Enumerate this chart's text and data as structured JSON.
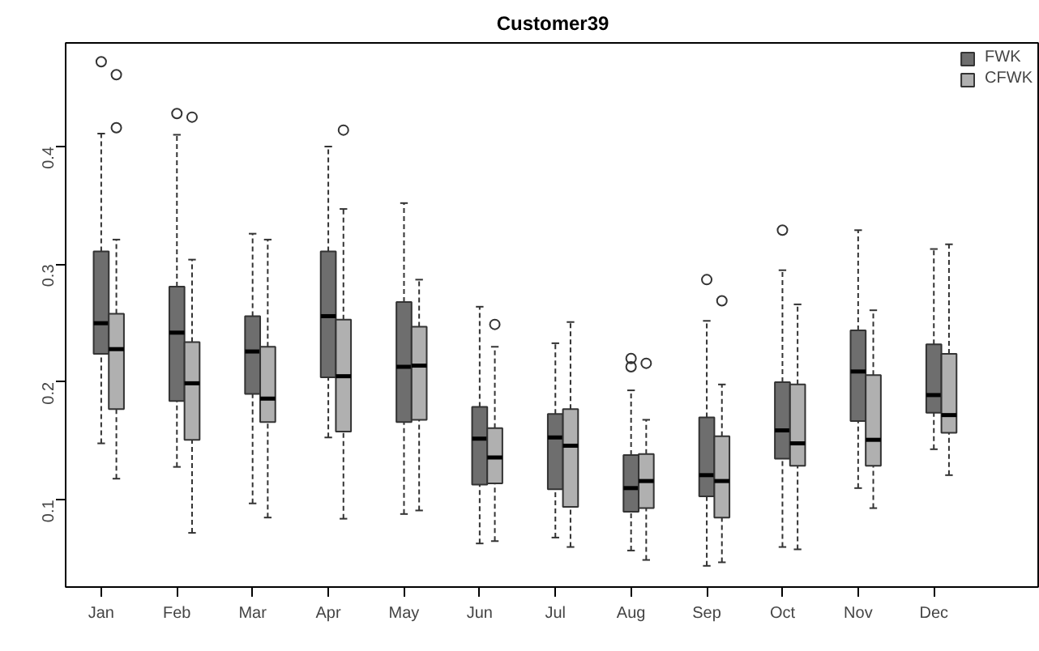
{
  "chart_data": {
    "type": "box",
    "title": "Customer39",
    "categories": [
      "Jan",
      "Feb",
      "Mar",
      "Apr",
      "May",
      "Jun",
      "Jul",
      "Aug",
      "Sep",
      "Oct",
      "Nov",
      "Dec"
    ],
    "ylim": [
      0.026,
      0.488
    ],
    "yticks": [
      0.1,
      0.2,
      0.3,
      0.4
    ],
    "grid": false,
    "legend": "top right",
    "series": [
      {
        "name": "FWK",
        "color": "#6e6e6e",
        "boxes": [
          {
            "low": 0.148,
            "q1": 0.224,
            "median": 0.25,
            "q3": 0.311,
            "high": 0.411,
            "outliers": [
              0.472
            ]
          },
          {
            "low": 0.128,
            "q1": 0.184,
            "median": 0.242,
            "q3": 0.281,
            "high": 0.41,
            "outliers": [
              0.428
            ]
          },
          {
            "low": 0.097,
            "q1": 0.19,
            "median": 0.226,
            "q3": 0.256,
            "high": 0.326
          },
          {
            "low": 0.153,
            "q1": 0.204,
            "median": 0.256,
            "q3": 0.311,
            "high": 0.4
          },
          {
            "low": 0.088,
            "q1": 0.166,
            "median": 0.213,
            "q3": 0.268,
            "high": 0.352
          },
          {
            "low": 0.063,
            "q1": 0.113,
            "median": 0.152,
            "q3": 0.179,
            "high": 0.264
          },
          {
            "low": 0.068,
            "q1": 0.109,
            "median": 0.153,
            "q3": 0.173,
            "high": 0.233
          },
          {
            "low": 0.057,
            "q1": 0.09,
            "median": 0.11,
            "q3": 0.138,
            "high": 0.193,
            "outliers": [
              0.22,
              0.213
            ]
          },
          {
            "low": 0.044,
            "q1": 0.103,
            "median": 0.121,
            "q3": 0.17,
            "high": 0.252,
            "outliers": [
              0.287
            ]
          },
          {
            "low": 0.06,
            "q1": 0.135,
            "median": 0.159,
            "q3": 0.2,
            "high": 0.295,
            "outliers": [
              0.329
            ]
          },
          {
            "low": 0.11,
            "q1": 0.167,
            "median": 0.209,
            "q3": 0.244,
            "high": 0.329
          },
          {
            "low": 0.143,
            "q1": 0.174,
            "median": 0.189,
            "q3": 0.232,
            "high": 0.313
          }
        ]
      },
      {
        "name": "CFWK",
        "color": "#b0b0b0",
        "boxes": [
          {
            "low": 0.118,
            "q1": 0.177,
            "median": 0.228,
            "q3": 0.258,
            "high": 0.321,
            "outliers": [
              0.461,
              0.416
            ]
          },
          {
            "low": 0.072,
            "q1": 0.151,
            "median": 0.199,
            "q3": 0.234,
            "high": 0.304,
            "outliers": [
              0.425
            ]
          },
          {
            "low": 0.085,
            "q1": 0.166,
            "median": 0.186,
            "q3": 0.23,
            "high": 0.321
          },
          {
            "low": 0.084,
            "q1": 0.158,
            "median": 0.205,
            "q3": 0.253,
            "high": 0.347,
            "outliers": [
              0.414
            ]
          },
          {
            "low": 0.091,
            "q1": 0.168,
            "median": 0.214,
            "q3": 0.247,
            "high": 0.287
          },
          {
            "low": 0.065,
            "q1": 0.114,
            "median": 0.136,
            "q3": 0.161,
            "high": 0.23,
            "outliers": [
              0.249
            ]
          },
          {
            "low": 0.06,
            "q1": 0.094,
            "median": 0.146,
            "q3": 0.177,
            "high": 0.251
          },
          {
            "low": 0.049,
            "q1": 0.093,
            "median": 0.116,
            "q3": 0.139,
            "high": 0.168,
            "outliers": [
              0.216
            ]
          },
          {
            "low": 0.047,
            "q1": 0.085,
            "median": 0.116,
            "q3": 0.154,
            "high": 0.198,
            "outliers": [
              0.269
            ]
          },
          {
            "low": 0.058,
            "q1": 0.129,
            "median": 0.148,
            "q3": 0.198,
            "high": 0.266
          },
          {
            "low": 0.093,
            "q1": 0.129,
            "median": 0.151,
            "q3": 0.206,
            "high": 0.261
          },
          {
            "low": 0.121,
            "q1": 0.157,
            "median": 0.172,
            "q3": 0.224,
            "high": 0.317
          }
        ]
      }
    ]
  }
}
